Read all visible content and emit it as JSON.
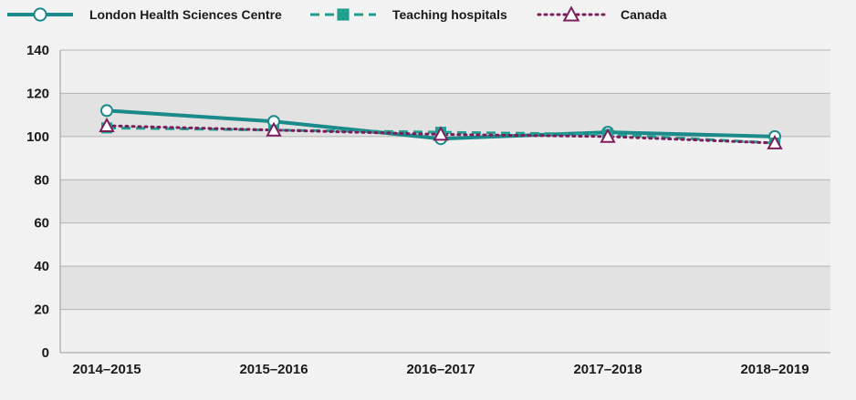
{
  "chart_data": {
    "type": "line",
    "categories": [
      "2014–2015",
      "2015–2016",
      "2016–2017",
      "2017–2018",
      "2018–2019"
    ],
    "ylim": [
      0,
      140
    ],
    "yticks": [
      0,
      20,
      40,
      60,
      80,
      100,
      120,
      140
    ],
    "grid": true,
    "legend_position": "top-left",
    "series": [
      {
        "name": "London Health Sciences Centre",
        "values": [
          112,
          107,
          99,
          102,
          100
        ],
        "color": "#1a8a8a",
        "style": "solid",
        "marker": "circle"
      },
      {
        "name": "Teaching hospitals",
        "values": [
          104,
          103,
          102,
          101,
          97
        ],
        "color": "#20a090",
        "style": "dashed",
        "marker": "square"
      },
      {
        "name": "Canada",
        "values": [
          105,
          103,
          101,
          100,
          97
        ],
        "color": "#7a1f5c",
        "style": "dotted",
        "marker": "triangle"
      }
    ]
  }
}
